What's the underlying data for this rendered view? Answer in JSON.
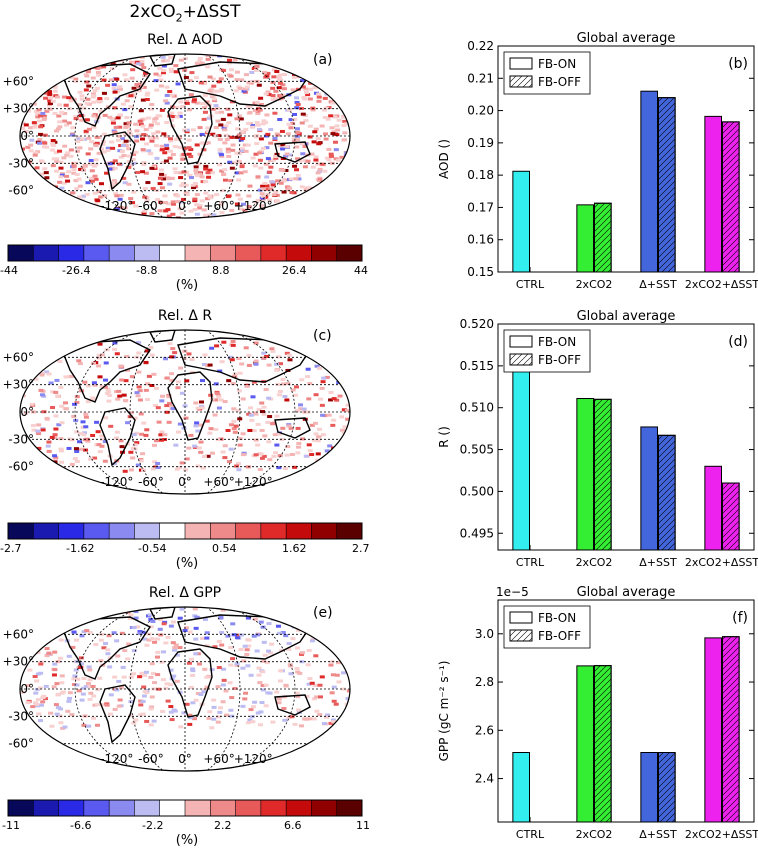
{
  "figure_title": "2xCO2+ΔSST",
  "maps": [
    {
      "title": "Rel. Δ AOD",
      "tag": "(a)",
      "colorbar_ticks": [
        "-44",
        "-26.4",
        "-8.8",
        "8.8",
        "26.4",
        "44"
      ],
      "unit": "(%)"
    },
    {
      "title": "Rel. Δ R",
      "tag": "(c)",
      "colorbar_ticks": [
        "-2.7",
        "-1.62",
        "-0.54",
        "0.54",
        "1.62",
        "2.7"
      ],
      "unit": "(%)"
    },
    {
      "title": "Rel. Δ GPP",
      "tag": "(e)",
      "colorbar_ticks": [
        "-11",
        "-6.6",
        "-2.2",
        "2.2",
        "6.6",
        "11"
      ],
      "unit": "(%)"
    }
  ],
  "lat_labels": [
    "+60°",
    "+30°",
    "0°",
    "-30°",
    "-60°"
  ],
  "lon_labels": [
    "-120°",
    "-60°",
    "0°",
    "+60°",
    "+120°"
  ],
  "colorbar_colors": [
    "#08085a",
    "#1a1ab0",
    "#2a2ae6",
    "#5a5af0",
    "#8a8af0",
    "#bcbcf2",
    "#ffffff",
    "#f4b4b4",
    "#ee8a8a",
    "#e85a5a",
    "#e02a2a",
    "#c40a0a",
    "#900000",
    "#5a0000"
  ],
  "bar_colors": {
    "CTRL": "#33eeee",
    "2xCO2": "#33ee33",
    "Δ+SST": "#4466dd",
    "2xCO2+ΔSST": "#ee22ee"
  },
  "chart_data": [
    {
      "type": "bar",
      "tag": "(b)",
      "title": "Global average",
      "ylabel": "AOD ()",
      "categories": [
        "CTRL",
        "2xCO2",
        "Δ+SST",
        "2xCO2+ΔSST"
      ],
      "series": [
        {
          "name": "FB-ON",
          "values": [
            0.1812,
            0.1708,
            0.206,
            0.1982
          ]
        },
        {
          "name": "FB-OFF",
          "values": [
            null,
            0.1713,
            0.204,
            0.1965
          ]
        }
      ],
      "ylim": [
        0.15,
        0.22
      ],
      "yticks": [
        "0.15",
        "0.16",
        "0.17",
        "0.18",
        "0.19",
        "0.20",
        "0.21",
        "0.22"
      ],
      "legend": "top-left",
      "offset": ""
    },
    {
      "type": "bar",
      "tag": "(d)",
      "title": "Global average",
      "ylabel": "R ()",
      "categories": [
        "CTRL",
        "2xCO2",
        "Δ+SST",
        "2xCO2+ΔSST"
      ],
      "series": [
        {
          "name": "FB-ON",
          "values": [
            0.5146,
            0.5111,
            0.5077,
            0.503
          ]
        },
        {
          "name": "FB-OFF",
          "values": [
            null,
            0.511,
            0.5067,
            0.501
          ]
        }
      ],
      "ylim": [
        0.493,
        0.52
      ],
      "yticks": [
        "0.495",
        "0.500",
        "0.505",
        "0.510",
        "0.515",
        "0.520"
      ],
      "legend": "top-left",
      "offset": ""
    },
    {
      "type": "bar",
      "tag": "(f)",
      "title": "Global average",
      "ylabel": "GPP (gC m⁻² s⁻¹)",
      "categories": [
        "CTRL",
        "2xCO2",
        "Δ+SST",
        "2xCO2+ΔSST"
      ],
      "series": [
        {
          "name": "FB-ON",
          "values": [
            2.508,
            2.867,
            2.508,
            2.983
          ]
        },
        {
          "name": "FB-OFF",
          "values": [
            null,
            2.868,
            2.508,
            2.988
          ]
        }
      ],
      "ylim": [
        2.22,
        3.14
      ],
      "yticks": [
        "2.4",
        "2.6",
        "2.8",
        "3.0"
      ],
      "legend": "top-left",
      "offset": "1e−5"
    }
  ]
}
